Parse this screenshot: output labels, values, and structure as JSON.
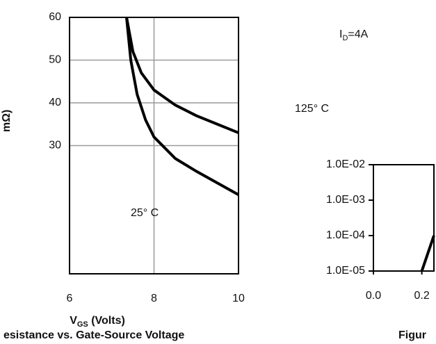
{
  "chart_data": [
    {
      "type": "line",
      "title": "esistance vs. Gate-Source Voltage",
      "xlabel": {
        "main": "V",
        "sub": "GS",
        "rest": " (Volts)"
      },
      "ylabel": "mΩ)",
      "annotations": [
        {
          "main": "I",
          "sub": "D",
          "rest": "=4A"
        },
        {
          "main": "125° C"
        },
        {
          "main": "25° C"
        }
      ],
      "xlim": [
        6,
        10
      ],
      "xticks": [
        6,
        8,
        10
      ],
      "ylim": [
        0,
        60
      ],
      "yticks": [
        30,
        40,
        50,
        60
      ],
      "grid": true,
      "series": [
        {
          "name": "125° C",
          "color": "#000000",
          "x": [
            7.35,
            7.5,
            7.7,
            8,
            8.5,
            9,
            9.5,
            10
          ],
          "values": [
            60,
            52,
            47,
            43,
            39.5,
            37,
            35,
            33
          ]
        },
        {
          "name": "25° C",
          "color": "#000000",
          "x": [
            7.35,
            7.45,
            7.6,
            7.8,
            8,
            8.5,
            9,
            10
          ],
          "values": [
            60,
            50,
            42,
            36,
            32,
            27,
            24,
            18.5
          ]
        }
      ]
    },
    {
      "type": "line",
      "title": "Figur",
      "xlim": [
        0,
        0.25
      ],
      "xticks": [
        {
          "value": 0,
          "label": "0.0"
        },
        0.2
      ],
      "ylim": [
        1e-05,
        0.01
      ],
      "log_y": true,
      "yticks": [
        {
          "value": 0.01,
          "label": "1.0E-02"
        },
        {
          "value": 0.001,
          "label": "1.0E-03"
        },
        {
          "value": 0.0001,
          "label": "1.0E-04"
        },
        {
          "value": 1e-05,
          "label": "1.0E-05"
        }
      ],
      "series": [
        {
          "name": null,
          "color": "#000000",
          "x": [
            0.2,
            0.25
          ],
          "values": [
            1e-05,
            0.0001
          ]
        }
      ]
    }
  ]
}
